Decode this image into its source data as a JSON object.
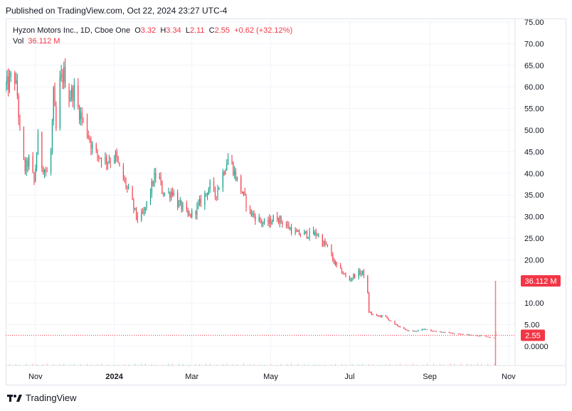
{
  "published_text": "Published on TradingView.com, Oct 22, 2024 23:27 UTC-4",
  "legend": {
    "symbol": "Hyzon Motors Inc., 1D, Cboe One",
    "open_label": "O",
    "open": "3.32",
    "high_label": "H",
    "high": "3.34",
    "low_label": "L",
    "low": "2.11",
    "close_label": "C",
    "close": "2.55",
    "change": "+0.62 (+32.12%)",
    "vol_label": "Vol",
    "vol": "36.112 M"
  },
  "price_tag": "2.55",
  "volume_tag": "36.112 M",
  "footer_brand": "TradingView",
  "colors": {
    "up": "#089981",
    "down": "#f23645",
    "grid": "#f0f3fa",
    "axis_text": "#131722"
  },
  "chart_data": {
    "type": "candlestick",
    "y_ticks": [
      "75.00",
      "70.00",
      "65.00",
      "60.00",
      "55.00",
      "50.00",
      "45.00",
      "40.00",
      "35.00",
      "30.00",
      "25.00",
      "20.00",
      "15.00",
      "10.00",
      "5.00",
      "0.0000"
    ],
    "ylim": [
      0,
      75
    ],
    "x_ticks": [
      {
        "label": "Nov",
        "date": "2023-11-01"
      },
      {
        "label": "2024",
        "date": "2024-01-01"
      },
      {
        "label": "Mar",
        "date": "2024-03-01"
      },
      {
        "label": "May",
        "date": "2024-05-01"
      },
      {
        "label": "Jul",
        "date": "2024-07-01"
      },
      {
        "label": "Sep",
        "date": "2024-09-01"
      },
      {
        "label": "Nov",
        "date": "2024-11-01"
      }
    ],
    "x_range": [
      "2023-10-09",
      "2024-11-06"
    ],
    "close_path": [
      [
        "2023-10-09",
        60
      ],
      [
        "2023-10-12",
        61
      ],
      [
        "2023-10-15",
        64
      ],
      [
        "2023-10-18",
        58
      ],
      [
        "2023-10-21",
        45
      ],
      [
        "2023-10-24",
        41
      ],
      [
        "2023-10-27",
        43
      ],
      [
        "2023-10-31",
        38
      ],
      [
        "2023-11-03",
        48
      ],
      [
        "2023-11-06",
        42
      ],
      [
        "2023-11-10",
        40
      ],
      [
        "2023-11-13",
        45
      ],
      [
        "2023-11-15",
        58
      ],
      [
        "2023-11-17",
        50
      ],
      [
        "2023-11-20",
        61
      ],
      [
        "2023-11-23",
        63
      ],
      [
        "2023-11-27",
        58
      ],
      [
        "2023-12-01",
        59
      ],
      [
        "2023-12-04",
        55
      ],
      [
        "2023-12-08",
        52
      ],
      [
        "2023-12-12",
        49
      ],
      [
        "2023-12-16",
        45
      ],
      [
        "2023-12-20",
        44
      ],
      [
        "2023-12-26",
        43
      ],
      [
        "2024-01-02",
        44
      ],
      [
        "2024-01-05",
        41
      ],
      [
        "2024-01-09",
        38
      ],
      [
        "2024-01-13",
        35
      ],
      [
        "2024-01-17",
        31
      ],
      [
        "2024-01-20",
        29
      ],
      [
        "2024-01-24",
        31
      ],
      [
        "2024-01-28",
        35
      ],
      [
        "2024-02-01",
        39
      ],
      [
        "2024-02-04",
        40
      ],
      [
        "2024-02-07",
        36
      ],
      [
        "2024-02-11",
        35
      ],
      [
        "2024-02-15",
        36
      ],
      [
        "2024-02-19",
        33
      ],
      [
        "2024-02-23",
        32
      ],
      [
        "2024-02-27",
        30
      ],
      [
        "2024-03-03",
        31
      ],
      [
        "2024-03-07",
        33
      ],
      [
        "2024-03-11",
        35
      ],
      [
        "2024-03-15",
        37
      ],
      [
        "2024-03-19",
        35
      ],
      [
        "2024-03-23",
        38
      ],
      [
        "2024-03-27",
        42
      ],
      [
        "2024-03-30",
        44
      ],
      [
        "2024-04-03",
        40
      ],
      [
        "2024-04-07",
        37
      ],
      [
        "2024-04-11",
        34
      ],
      [
        "2024-04-15",
        31
      ],
      [
        "2024-04-19",
        30
      ],
      [
        "2024-04-23",
        29
      ],
      [
        "2024-04-27",
        28
      ],
      [
        "2024-05-01",
        29
      ],
      [
        "2024-05-05",
        30
      ],
      [
        "2024-05-09",
        29
      ],
      [
        "2024-05-13",
        28
      ],
      [
        "2024-05-17",
        27
      ],
      [
        "2024-05-21",
        26
      ],
      [
        "2024-05-25",
        26
      ],
      [
        "2024-05-29",
        26
      ],
      [
        "2024-06-02",
        26
      ],
      [
        "2024-06-06",
        26
      ],
      [
        "2024-06-10",
        24
      ],
      [
        "2024-06-14",
        23
      ],
      [
        "2024-06-18",
        20
      ],
      [
        "2024-06-22",
        18
      ],
      [
        "2024-06-26",
        17
      ],
      [
        "2024-06-30",
        15
      ],
      [
        "2024-07-03",
        16
      ],
      [
        "2024-07-07",
        17
      ],
      [
        "2024-07-11",
        17
      ],
      [
        "2024-07-14",
        16
      ],
      [
        "2024-07-16",
        8
      ],
      [
        "2024-07-20",
        7
      ],
      [
        "2024-07-24",
        7
      ],
      [
        "2024-07-28",
        7
      ],
      [
        "2024-08-01",
        6
      ],
      [
        "2024-08-05",
        5
      ],
      [
        "2024-08-09",
        4.5
      ],
      [
        "2024-08-13",
        3.8
      ],
      [
        "2024-08-17",
        3.5
      ],
      [
        "2024-08-21",
        3.5
      ],
      [
        "2024-08-25",
        3.8
      ],
      [
        "2024-08-29",
        4.0
      ],
      [
        "2024-09-02",
        3.6
      ],
      [
        "2024-09-06",
        3.5
      ],
      [
        "2024-09-10",
        3.3
      ],
      [
        "2024-09-14",
        3.2
      ],
      [
        "2024-09-18",
        3.0
      ],
      [
        "2024-09-22",
        2.9
      ],
      [
        "2024-09-26",
        2.8
      ],
      [
        "2024-09-30",
        2.7
      ],
      [
        "2024-10-04",
        2.6
      ],
      [
        "2024-10-08",
        2.5
      ],
      [
        "2024-10-12",
        2.4
      ],
      [
        "2024-10-16",
        2.2
      ],
      [
        "2024-10-19",
        2.0
      ],
      [
        "2024-10-21",
        1.93
      ],
      [
        "2024-10-22",
        2.55
      ]
    ],
    "last_close": 2.55,
    "last_volume_millions": 36.112
  }
}
